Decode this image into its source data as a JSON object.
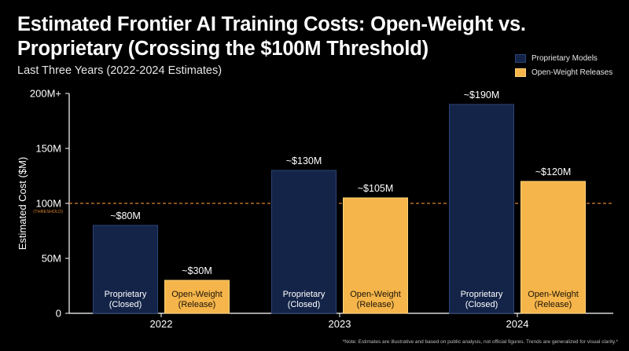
{
  "chart_data": {
    "type": "bar",
    "title": "Estimated Frontier AI Training Costs: Open-Weight vs. Proprietary (Crossing the $100M Threshold)",
    "subtitle": "Last Three Years (2022-2024 Estimates)",
    "ylabel": "Estimated Cost ($M)",
    "xlabel": "",
    "categories": [
      "2022",
      "2023",
      "2024"
    ],
    "ylim": [
      0,
      200
    ],
    "yticks": [
      {
        "value": 0,
        "label": "0"
      },
      {
        "value": 50,
        "label": "50M"
      },
      {
        "value": 100,
        "label": "100M"
      },
      {
        "value": 150,
        "label": "150M"
      },
      {
        "value": 200,
        "label": "200M+"
      }
    ],
    "threshold": {
      "value": 100,
      "label": "(THRESHOLD)",
      "color": "#d9822b"
    },
    "series": [
      {
        "name": "Proprietary Models",
        "bar_label": [
          "Proprietary",
          "(Closed)"
        ],
        "values": [
          80,
          130,
          190
        ],
        "data_labels": [
          "~$80M",
          "~$130M",
          "~$190M"
        ],
        "fill": "#142448",
        "stroke": "#2c4377",
        "text_color": "#ffffff"
      },
      {
        "name": "Open-Weight Releases",
        "bar_label": [
          "Open-Weight",
          "(Release)"
        ],
        "values": [
          30,
          105,
          120
        ],
        "data_labels": [
          "~$30M",
          "~$105M",
          "~$120M"
        ],
        "fill": "#f5b54a",
        "stroke": "#ffd27a",
        "text_color": "#1a1208"
      }
    ],
    "grid": false,
    "legend_position": "top-right"
  },
  "note": "*Note: Estimates are illustrative and based on public analysis, not official figures. Trends are generalized for visual clarity.*"
}
